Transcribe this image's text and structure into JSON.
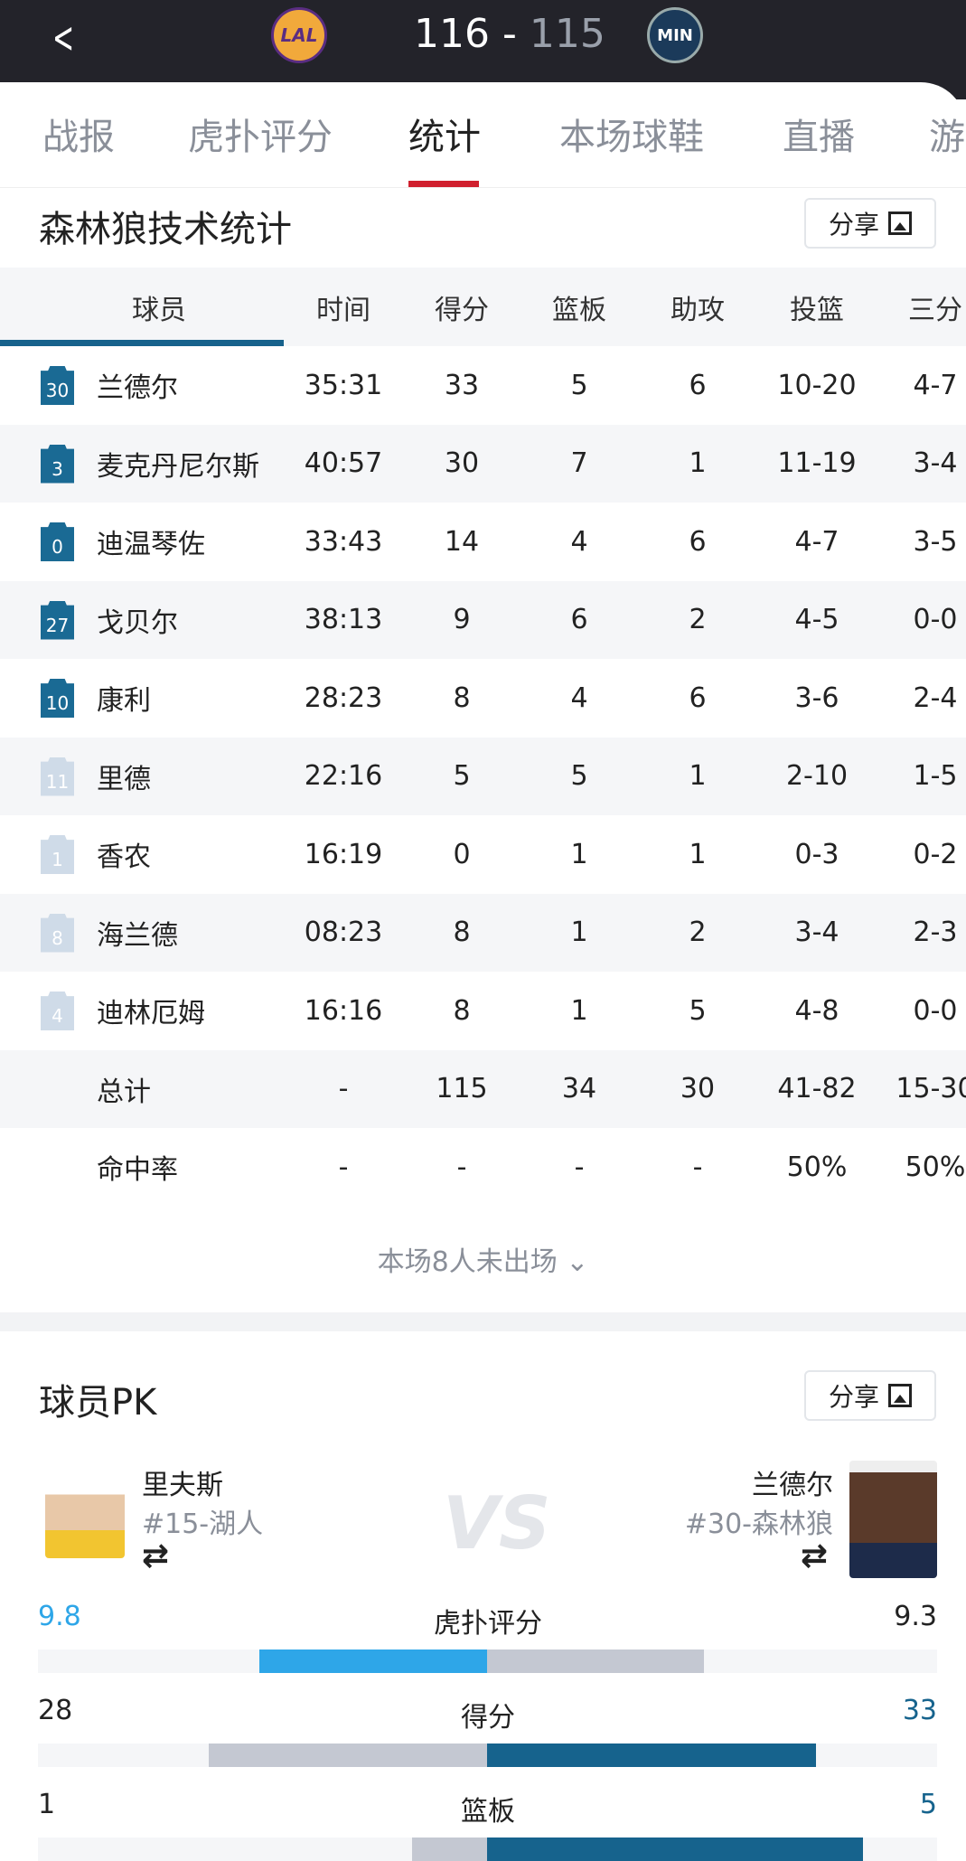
{
  "header": {
    "home_team": "LAL",
    "away_team": "MIN",
    "home_score": "116",
    "separator": " - ",
    "away_score": "115"
  },
  "tabs": [
    {
      "label": "战报"
    },
    {
      "label": "虎扑评分"
    },
    {
      "label": "统计",
      "active": true
    },
    {
      "label": "本场球鞋"
    },
    {
      "label": "直播"
    },
    {
      "label": "游"
    }
  ],
  "stats": {
    "title": "森林狼技术统计",
    "share_label": "分享",
    "columns": [
      "球员",
      "时间",
      "得分",
      "篮板",
      "助攻",
      "投篮",
      "三分"
    ],
    "players": [
      {
        "number": "30",
        "name": "兰德尔",
        "starter": true,
        "cells": [
          "35:31",
          "33",
          "5",
          "6",
          "10-20",
          "4-7"
        ]
      },
      {
        "number": "3",
        "name": "麦克丹尼尔斯",
        "starter": true,
        "cells": [
          "40:57",
          "30",
          "7",
          "1",
          "11-19",
          "3-4"
        ]
      },
      {
        "number": "0",
        "name": "迪温琴佐",
        "starter": true,
        "cells": [
          "33:43",
          "14",
          "4",
          "6",
          "4-7",
          "3-5"
        ]
      },
      {
        "number": "27",
        "name": "戈贝尔",
        "starter": true,
        "cells": [
          "38:13",
          "9",
          "6",
          "2",
          "4-5",
          "0-0"
        ]
      },
      {
        "number": "10",
        "name": "康利",
        "starter": true,
        "cells": [
          "28:23",
          "8",
          "4",
          "6",
          "3-6",
          "2-4"
        ]
      },
      {
        "number": "11",
        "name": "里德",
        "starter": false,
        "cells": [
          "22:16",
          "5",
          "5",
          "1",
          "2-10",
          "1-5"
        ]
      },
      {
        "number": "1",
        "name": "香农",
        "starter": false,
        "cells": [
          "16:19",
          "0",
          "1",
          "1",
          "0-3",
          "0-2"
        ]
      },
      {
        "number": "8",
        "name": "海兰德",
        "starter": false,
        "cells": [
          "08:23",
          "8",
          "1",
          "2",
          "3-4",
          "2-3"
        ]
      },
      {
        "number": "4",
        "name": "迪林厄姆",
        "starter": false,
        "cells": [
          "16:16",
          "8",
          "1",
          "5",
          "4-8",
          "0-0"
        ]
      }
    ],
    "totals": {
      "name": "总计",
      "cells": [
        "-",
        "115",
        "34",
        "30",
        "41-82",
        "15-30"
      ]
    },
    "pct": {
      "name": "命中率",
      "cells": [
        "-",
        "-",
        "-",
        "-",
        "50%",
        "50%"
      ]
    },
    "dnp_label": "本场8人未出场"
  },
  "pk": {
    "title": "球员PK",
    "share_label": "分享",
    "left": {
      "name": "里夫斯",
      "sub": "#15-湖人"
    },
    "right": {
      "name": "兰德尔",
      "sub": "#30-森林狼"
    },
    "vs": "VS",
    "rows": [
      {
        "label": "虎扑评分",
        "left": "9.8",
        "right": "9.3",
        "left_color": "#2ea6e8",
        "right_color": "#c4c8d2",
        "left_value_color": "#2ea6e8",
        "right_value_color": "#222"
      },
      {
        "label": "得分",
        "left": "28",
        "right": "33",
        "left_color": "#c4c8d2",
        "right_color": "#16638d",
        "left_value_color": "#222",
        "right_value_color": "#16638d"
      },
      {
        "label": "篮板",
        "left": "1",
        "right": "5",
        "left_color": "#c4c8d2",
        "right_color": "#16638d",
        "left_value_color": "#222",
        "right_value_color": "#16638d"
      }
    ]
  }
}
